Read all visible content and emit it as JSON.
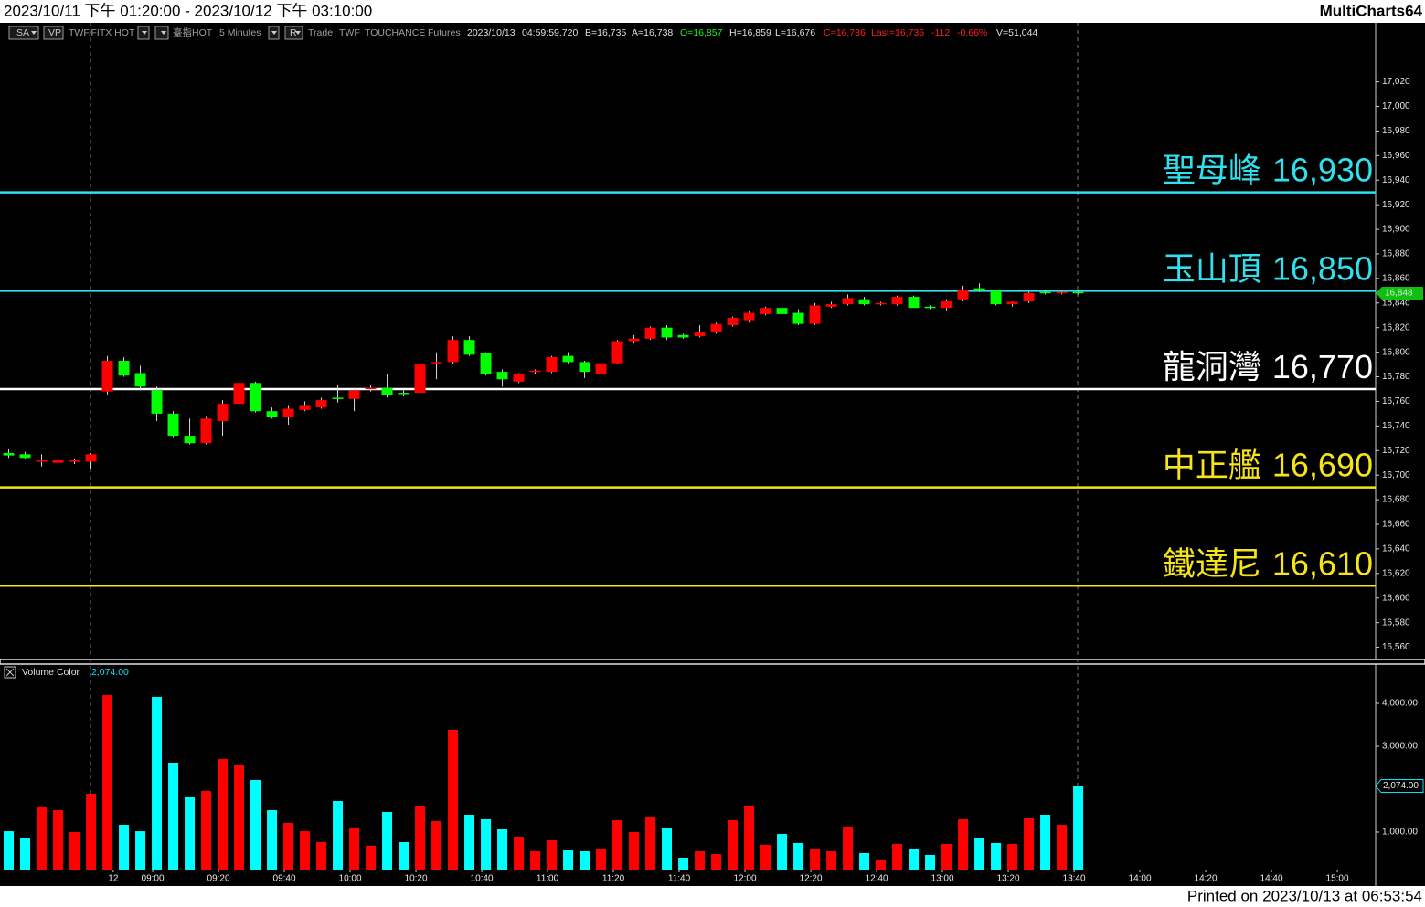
{
  "header": {
    "title": "2023/10/11 下午 01:20:00 - 2023/10/12 下午 03:10:00",
    "app": "MultiCharts64"
  },
  "info": [
    {
      "text": "SA",
      "color": "#c8c8c8"
    },
    {
      "text": "VP",
      "color": "#c8c8c8"
    },
    {
      "text": "TWF.FITX HOT",
      "color": "#a0a0a0"
    },
    {
      "text": "臺指HOT",
      "color": "#a0a0a0"
    },
    {
      "text": "5 Minutes",
      "color": "#a0a0a0"
    },
    {
      "text": "R",
      "color": "#c8c8c8"
    },
    {
      "text": "Trade",
      "color": "#a0a0a0"
    },
    {
      "text": "TWF",
      "color": "#a0a0a0"
    },
    {
      "text": "TOUCHANCE",
      "color": "#a0a0a0"
    },
    {
      "text": "Futures",
      "color": "#a0a0a0"
    },
    {
      "text": "2023/10/13",
      "color": "#e0e0e0"
    },
    {
      "text": "04:59:59.720",
      "color": "#e0e0e0"
    },
    {
      "text": "B=16,735",
      "color": "#e0e0e0"
    },
    {
      "text": "A=16,738",
      "color": "#e0e0e0"
    },
    {
      "text": "O=16,857",
      "color": "#22ee22"
    },
    {
      "text": "H=16,859",
      "color": "#e0e0e0"
    },
    {
      "text": "L=16,676",
      "color": "#e0e0e0"
    },
    {
      "text": "C=16,736",
      "color": "#ff2020"
    },
    {
      "text": "Last=16,736",
      "color": "#ff2020"
    },
    {
      "text": "-112",
      "color": "#ff2020"
    },
    {
      "text": "-0.66%",
      "color": "#ff2020"
    },
    {
      "text": "V=51,044",
      "color": "#e0e0e0"
    }
  ],
  "chart_data": {
    "type": "candlestick",
    "xlim": [
      -0.53,
      83.08
    ],
    "xticks": [
      {
        "value": 6.35,
        "label": "12"
      },
      {
        "value": 8.75,
        "label": "09:00"
      },
      {
        "value": 12.75,
        "label": "09:20"
      },
      {
        "value": 16.75,
        "label": "09:40"
      },
      {
        "value": 20.75,
        "label": "10:00"
      },
      {
        "value": 24.75,
        "label": "10:20"
      },
      {
        "value": 28.75,
        "label": "10:40"
      },
      {
        "value": 32.75,
        "label": "11:00"
      },
      {
        "value": 36.75,
        "label": "11:20"
      },
      {
        "value": 40.75,
        "label": "11:40"
      },
      {
        "value": 44.75,
        "label": "12:00"
      },
      {
        "value": 48.75,
        "label": "12:20"
      },
      {
        "value": 52.75,
        "label": "12:40"
      },
      {
        "value": 56.75,
        "label": "13:00"
      },
      {
        "value": 60.75,
        "label": "13:20"
      },
      {
        "value": 64.75,
        "label": "13:40"
      },
      {
        "value": 68.75,
        "label": "14:00"
      },
      {
        "value": 72.75,
        "label": "14:20"
      },
      {
        "value": 76.75,
        "label": "14:40"
      },
      {
        "value": 80.75,
        "label": "15:00"
      }
    ],
    "ylim": [
      16550,
      17068
    ],
    "yticks": [
      {
        "value": 16560,
        "label": "16,560"
      },
      {
        "value": 16580,
        "label": "16,580"
      },
      {
        "value": 16600,
        "label": "16,600"
      },
      {
        "value": 16620,
        "label": "16,620"
      },
      {
        "value": 16640,
        "label": "16,640"
      },
      {
        "value": 16660,
        "label": "16,660"
      },
      {
        "value": 16680,
        "label": "16,680"
      },
      {
        "value": 16700,
        "label": "16,700"
      },
      {
        "value": 16720,
        "label": "16,720"
      },
      {
        "value": 16740,
        "label": "16,740"
      },
      {
        "value": 16760,
        "label": "16,760"
      },
      {
        "value": 16780,
        "label": "16,780"
      },
      {
        "value": 16800,
        "label": "16,800"
      },
      {
        "value": 16820,
        "label": "16,820"
      },
      {
        "value": 16840,
        "label": "16,840"
      },
      {
        "value": 16860,
        "label": "16,860"
      },
      {
        "value": 16880,
        "label": "16,880"
      },
      {
        "value": 16900,
        "label": "16,900"
      },
      {
        "value": 16920,
        "label": "16,920"
      },
      {
        "value": 16940,
        "label": "16,940"
      },
      {
        "value": 16960,
        "label": "16,960"
      },
      {
        "value": 16980,
        "label": "16,980"
      },
      {
        "value": 17000,
        "label": "17,000"
      },
      {
        "value": 17020,
        "label": "17,020"
      }
    ],
    "up_color": "#ff0000",
    "down_color": "#00ff00",
    "volume_up_color": "#ff0000",
    "volume_down_color": "#00ffff",
    "open": [
      16718,
      16717,
      16711,
      16710,
      16711,
      16711,
      16768,
      16793,
      16783,
      16769,
      16750,
      16732,
      16726,
      16744,
      16758,
      16775,
      16752,
      16747,
      16753,
      16755,
      16763,
      16762,
      16770,
      16771,
      16767,
      16767,
      16791,
      16792,
      16810,
      16799,
      16784,
      16776,
      16784,
      16784,
      16797,
      16792,
      16782,
      16791,
      16809,
      16811,
      16820,
      16814,
      16813,
      16816,
      16822,
      16826,
      16831,
      16836,
      16832,
      16823,
      16837,
      16839,
      16843,
      16839,
      16839,
      16845,
      16837,
      16836,
      16843,
      16852,
      16850,
      16839,
      16842,
      16849,
      16848,
      16849
    ],
    "high": [
      16721,
      16719,
      16717,
      16714,
      16713,
      16718,
      16797,
      16796,
      16789,
      16772,
      16752,
      16746,
      16748,
      16761,
      16776,
      16776,
      16755,
      16757,
      16760,
      16763,
      16773,
      16771,
      16773,
      16782,
      16769,
      16791,
      16800,
      16813,
      16813,
      16800,
      16786,
      16783,
      16786,
      16797,
      16800,
      16793,
      16792,
      16810,
      16814,
      16821,
      16822,
      16815,
      16822,
      16824,
      16829,
      16833,
      16837,
      16841,
      16835,
      16840,
      16841,
      16847,
      16845,
      16841,
      16846,
      16846,
      16838,
      16843,
      16854,
      16856,
      16851,
      16842,
      16849,
      16850,
      16850,
      16850
    ],
    "low": [
      16714,
      16713,
      16707,
      16708,
      16709,
      16705,
      16765,
      16780,
      16769,
      16744,
      16731,
      16725,
      16725,
      16732,
      16755,
      16751,
      16746,
      16741,
      16752,
      16754,
      16759,
      16752,
      16768,
      16763,
      16764,
      16766,
      16778,
      16790,
      16797,
      16781,
      16772,
      16775,
      16782,
      16783,
      16791,
      16779,
      16781,
      16790,
      16807,
      16810,
      16810,
      16811,
      16812,
      16815,
      16821,
      16824,
      16830,
      16830,
      16822,
      16822,
      16836,
      16838,
      16838,
      16838,
      16838,
      16836,
      16835,
      16834,
      16842,
      16849,
      16838,
      16837,
      16840,
      16847,
      16847,
      16847
    ],
    "close": [
      16716,
      16714,
      16712,
      16712,
      16712,
      16717,
      16793,
      16781,
      16772,
      16750,
      16732,
      16726,
      16746,
      16758,
      16775,
      16752,
      16747,
      16754,
      16757,
      16761,
      16762,
      16769,
      16771,
      16765,
      16766,
      16790,
      16792,
      16810,
      16798,
      16782,
      16778,
      16782,
      16785,
      16796,
      16792,
      16784,
      16791,
      16809,
      16811,
      16820,
      16812,
      16812,
      16816,
      16823,
      16828,
      16832,
      16836,
      16831,
      16823,
      16838,
      16839,
      16844,
      16839,
      16840,
      16845,
      16836,
      16836,
      16842,
      16851,
      16850,
      16839,
      16841,
      16848,
      16848,
      16849,
      16848
    ],
    "last_marker": {
      "value": 16848,
      "label": "16,848"
    },
    "levels": [
      {
        "name": "聖母峰",
        "value": 16930,
        "label": "16,930",
        "color": "#2fe0ee"
      },
      {
        "name": "玉山頂",
        "value": 16850,
        "label": "16,850",
        "color": "#2fe0ee"
      },
      {
        "name": "龍洞灣",
        "value": 16770,
        "label": "16,770",
        "color": "#ffffff"
      },
      {
        "name": "中正艦",
        "value": 16690,
        "label": "16,690",
        "color": "#f5e41a"
      },
      {
        "name": "鐵達尼",
        "value": 16610,
        "label": "16,610",
        "color": "#f5e41a"
      }
    ],
    "volume_title": "Volume Color",
    "volume_ylim": [
      0,
      4915
    ],
    "volume_yticks": [
      {
        "value": 1000,
        "label": "1,000.00"
      },
      {
        "value": 3000,
        "label": "3,000.00"
      },
      {
        "value": 4000,
        "label": "4,000.00"
      }
    ],
    "volume": [
      1020,
      850,
      1575,
      1510,
      1000,
      1894,
      4191,
      1170,
      1020,
      4150,
      2617,
      1809,
      1957,
      2702,
      2553,
      2213,
      1510,
      1213,
      1021,
      766,
      1723,
      1085,
      681,
      1468,
      766,
      1617,
      1255,
      3383,
      1404,
      1298,
      1064,
      894,
      553,
      809,
      574,
      553,
      617,
      1277,
      1000,
      1362,
      1085,
      404,
      553,
      489,
      1277,
      1617,
      702,
      957,
      745,
      596,
      553,
      1128,
      511,
      340,
      723,
      617,
      468,
      723,
      1298,
      851,
      745,
      723,
      1319,
      1404,
      1170,
      2074
    ],
    "volume_marker": {
      "value": 2074,
      "label": "2,074.00"
    }
  },
  "footer": "Printed on 2023/10/13 at 06:53:54"
}
